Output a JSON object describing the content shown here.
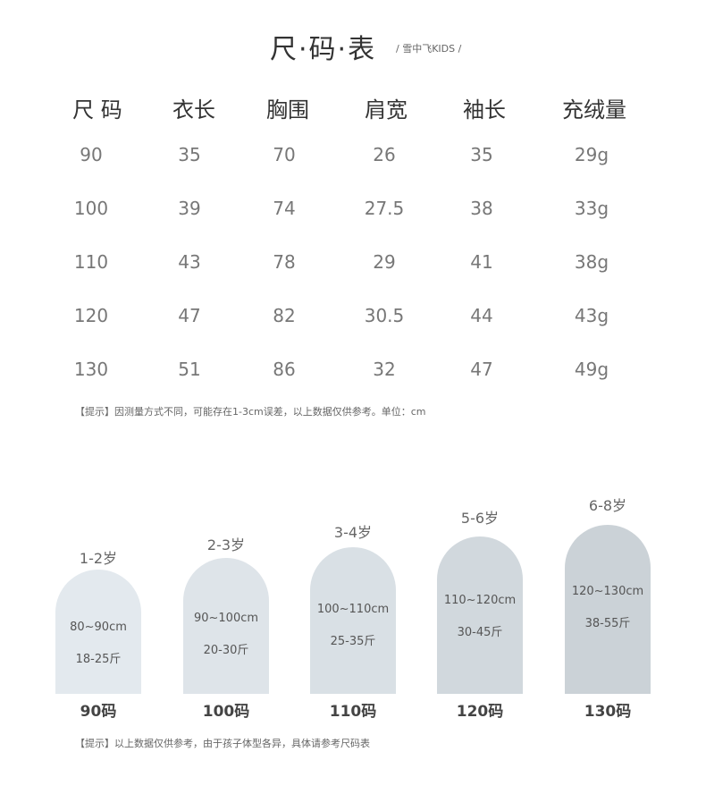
{
  "header": {
    "title": "尺·码·表",
    "subtitle": "/ 雪中飞KIDS /"
  },
  "table": {
    "columns": [
      "尺 码",
      "衣长",
      "胸围",
      "肩宽",
      "袖长",
      "充绒量"
    ],
    "rows": [
      [
        "90",
        "35",
        "70",
        "26",
        "35",
        "29g"
      ],
      [
        "100",
        "39",
        "74",
        "27.5",
        "38",
        "33g"
      ],
      [
        "110",
        "43",
        "78",
        "29",
        "41",
        "38g"
      ],
      [
        "120",
        "47",
        "82",
        "30.5",
        "44",
        "43g"
      ],
      [
        "130",
        "51",
        "86",
        "32",
        "47",
        "49g"
      ]
    ],
    "note": "【提示】因测量方式不同，可能存在1-3cm误差，以上数据仅供参考。单位：cm"
  },
  "guide": {
    "items": [
      {
        "age": "1-2岁",
        "height": "80~90cm",
        "weight": "18-25斤",
        "size": "90码",
        "color": "#e3e9ee"
      },
      {
        "age": "2-3岁",
        "height": "90~100cm",
        "weight": "20-30斤",
        "size": "100码",
        "color": "#dee4e9"
      },
      {
        "age": "3-4岁",
        "height": "100~110cm",
        "weight": "25-35斤",
        "size": "110码",
        "color": "#d9e0e5"
      },
      {
        "age": "5-6岁",
        "height": "110~120cm",
        "weight": "30-45斤",
        "size": "120码",
        "color": "#d1d8dd"
      },
      {
        "age": "6-8岁",
        "height": "120~130cm",
        "weight": "38-55斤",
        "size": "130码",
        "color": "#cbd2d7"
      }
    ],
    "note": "【提示】以上数据仅供参考，由于孩子体型各异，具体请参考尺码表"
  }
}
